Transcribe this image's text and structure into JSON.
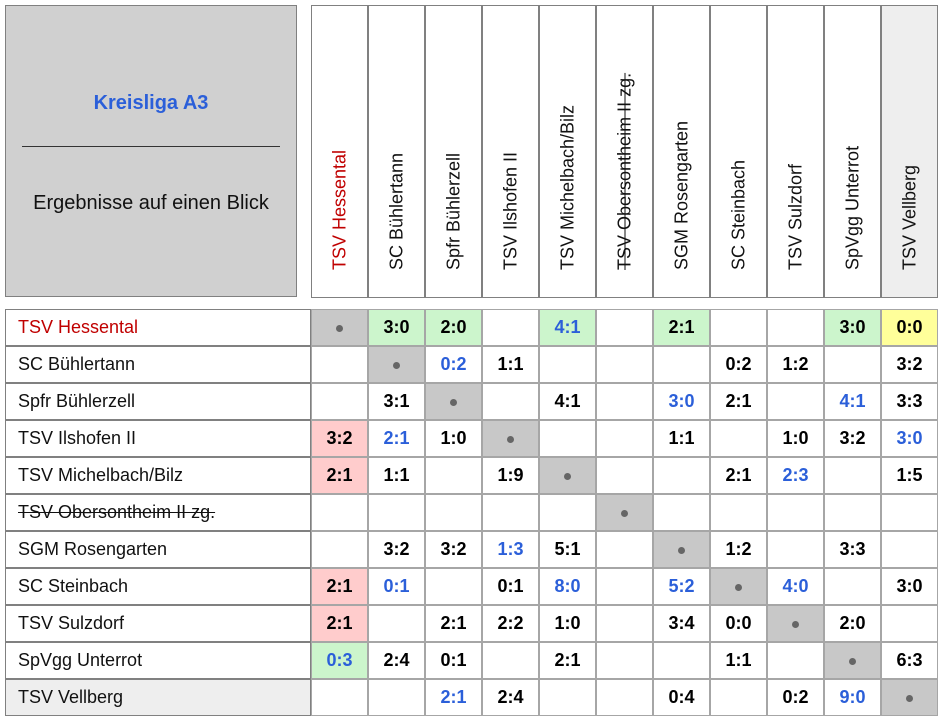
{
  "title": "Kreisliga A3",
  "separator": "_________________________",
  "subtitle": "Ergebnisse auf einen Blick",
  "teams": [
    {
      "name": "TSV Hessental",
      "struck": false,
      "home": true
    },
    {
      "name": "SC Bühlertann",
      "struck": false
    },
    {
      "name": "Spfr Bühlerzell",
      "struck": false
    },
    {
      "name": "TSV Ilshofen II",
      "struck": false
    },
    {
      "name": "TSV Michelbach/Bilz",
      "struck": false
    },
    {
      "name": "TSV Obersontheim II zg.",
      "struck": true
    },
    {
      "name": "SGM Rosengarten",
      "struck": false
    },
    {
      "name": "SC Steinbach",
      "struck": false
    },
    {
      "name": "TSV Sulzdorf",
      "struck": false
    },
    {
      "name": "SpVgg Unterrot",
      "struck": false
    },
    {
      "name": "TSV Vellberg",
      "struck": false
    }
  ],
  "results": [
    [
      ".",
      "3:0",
      "2:0",
      "",
      "4:1",
      "",
      "2:1",
      "",
      "",
      "3:0",
      "0:0"
    ],
    [
      "",
      ".",
      "0:2",
      "1:1",
      "",
      "",
      "",
      "0:2",
      "1:2",
      "",
      "3:2"
    ],
    [
      "",
      "3:1",
      ".",
      "",
      "4:1",
      "",
      "3:0",
      "2:1",
      "",
      "4:1",
      "3:3"
    ],
    [
      "3:2",
      "2:1",
      "1:0",
      ".",
      "",
      "",
      "1:1",
      "",
      "1:0",
      "3:2",
      "3:0"
    ],
    [
      "2:1",
      "1:1",
      "",
      "1:9",
      ".",
      "",
      "",
      "2:1",
      "2:3",
      "",
      "1:5"
    ],
    [
      "",
      "",
      "",
      "",
      "",
      ".",
      "",
      "",
      "",
      "",
      ""
    ],
    [
      "",
      "3:2",
      "3:2",
      "1:3",
      "5:1",
      "",
      ".",
      "1:2",
      "",
      "3:3",
      ""
    ],
    [
      "2:1",
      "0:1",
      "",
      "0:1",
      "8:0",
      "",
      "5:2",
      ".",
      "4:0",
      "",
      "3:0"
    ],
    [
      "2:1",
      "",
      "2:1",
      "2:2",
      "1:0",
      "",
      "3:4",
      "0:0",
      ".",
      "2:0",
      ""
    ],
    [
      "0:3",
      "2:4",
      "0:1",
      "",
      "2:1",
      "",
      "",
      "1:1",
      "",
      ".",
      "6:3"
    ],
    [
      "",
      "",
      "2:1",
      "2:4",
      "",
      "",
      "0:4",
      "",
      "0:2",
      "9:0",
      "."
    ]
  ],
  "colors": {
    "home_text": "#c00000",
    "title_blue": "#2b5fd9",
    "away_win_text": "#2b5fd9",
    "diagonal": "#c8c8c8",
    "win_bg": "#ccf5cc",
    "loss_bg": "#ffcccc",
    "draw_bg": "#ffff9a",
    "vellberg_bg": "#eeeeee"
  },
  "blue_cells": [
    [
      0,
      4
    ],
    [
      1,
      2
    ],
    [
      2,
      6
    ],
    [
      2,
      9
    ],
    [
      3,
      1
    ],
    [
      3,
      10
    ],
    [
      4,
      8
    ],
    [
      6,
      3
    ],
    [
      7,
      1
    ],
    [
      7,
      4
    ],
    [
      7,
      6
    ],
    [
      7,
      8
    ],
    [
      9,
      0
    ],
    [
      10,
      2
    ],
    [
      10,
      9
    ]
  ],
  "green_cells": [
    [
      0,
      1
    ],
    [
      0,
      2
    ],
    [
      0,
      4
    ],
    [
      0,
      6
    ],
    [
      0,
      9
    ],
    [
      9,
      0
    ]
  ],
  "pink_cells": [
    [
      3,
      0
    ],
    [
      4,
      0
    ],
    [
      7,
      0
    ],
    [
      8,
      0
    ]
  ],
  "yellow_cells": [
    [
      0,
      10
    ]
  ]
}
